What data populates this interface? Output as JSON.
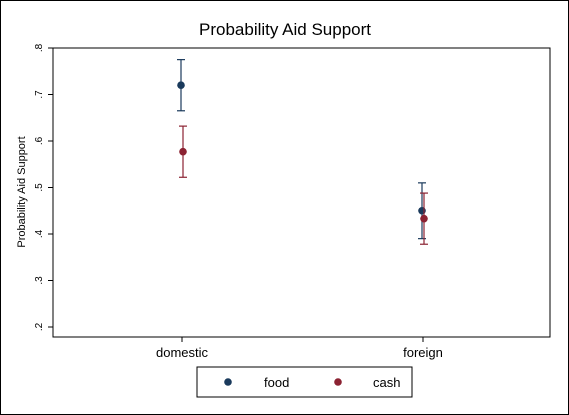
{
  "chart_data": {
    "type": "scatter",
    "title": "Probability Aid Support",
    "xlabel": "",
    "ylabel": "Probability Aid Support",
    "categories": [
      "domestic",
      "foreign"
    ],
    "ylim": [
      0.2,
      0.8
    ],
    "yticks": [
      0.2,
      0.3,
      0.4,
      0.5,
      0.6,
      0.7,
      0.8
    ],
    "ytick_labels": [
      ".2",
      ".3",
      ".4",
      ".5",
      ".6",
      ".7",
      ".8"
    ],
    "grid": false,
    "legend_position": "bottom",
    "series": [
      {
        "name": "food",
        "color": "#1a3a5c",
        "values": [
          0.72,
          0.45
        ],
        "ci_low": [
          0.665,
          0.39
        ],
        "ci_high": [
          0.775,
          0.51
        ]
      },
      {
        "name": "cash",
        "color": "#8b2232",
        "values": [
          0.577,
          0.433
        ],
        "ci_low": [
          0.522,
          0.378
        ],
        "ci_high": [
          0.632,
          0.488
        ]
      }
    ]
  }
}
